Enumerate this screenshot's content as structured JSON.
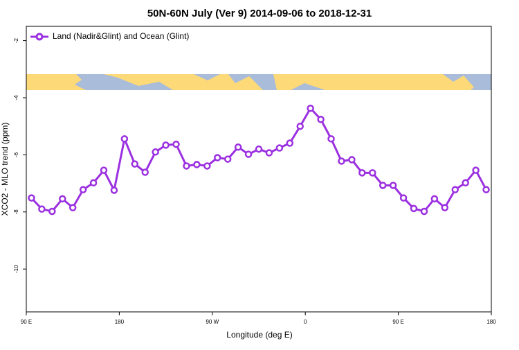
{
  "chart_data": {
    "type": "line",
    "title": "50N-60N July (Ver 9)   2014-09-06 to 2018-12-31",
    "xlabel": "Longitude (deg E)",
    "ylabel": "XCO2 - MLO trend (ppm)",
    "x": [
      95,
      105,
      115,
      125,
      135,
      145,
      155,
      165,
      175,
      185,
      195,
      205,
      215,
      225,
      235,
      245,
      255,
      265,
      275,
      285,
      295,
      305,
      315,
      325,
      335,
      345,
      355,
      365,
      375,
      385,
      395,
      405,
      415,
      425,
      435,
      445,
      455,
      465,
      475,
      485,
      495,
      505,
      515,
      525,
      535
    ],
    "series": [
      {
        "name": "Land (Nadir&Glint) and Ocean (Glint)",
        "color": "#9b30e0",
        "values": [
          -7.51,
          -7.9,
          -7.98,
          -7.54,
          -7.85,
          -7.22,
          -6.98,
          -6.54,
          -7.24,
          -5.44,
          -6.32,
          -6.61,
          -5.9,
          -5.66,
          -5.63,
          -6.39,
          -6.34,
          -6.39,
          -6.1,
          -6.15,
          -5.73,
          -5.98,
          -5.8,
          -5.93,
          -5.76,
          -5.59,
          -5.0,
          -4.37,
          -4.76,
          -5.44,
          -6.22,
          -6.17,
          -6.63,
          -6.63,
          -7.07,
          -7.07,
          -7.51,
          -7.88,
          -7.98,
          -7.54,
          -7.85,
          -7.22,
          -6.98,
          -6.54,
          -7.22
        ]
      }
    ],
    "xlim": [
      90,
      540
    ],
    "xticks": [
      {
        "value": 90,
        "label": "90 E"
      },
      180,
      {
        "value": 270,
        "label": "90 W"
      },
      {
        "value": 360,
        "label": "0"
      },
      {
        "value": 450,
        "label": "90 E"
      },
      {
        "value": 540,
        "label": "180"
      }
    ],
    "ylim": [
      -11.5,
      -1.5
    ],
    "yticks": [
      -10,
      -8,
      -6,
      -4,
      -2
    ],
    "legend": "top-left"
  }
}
